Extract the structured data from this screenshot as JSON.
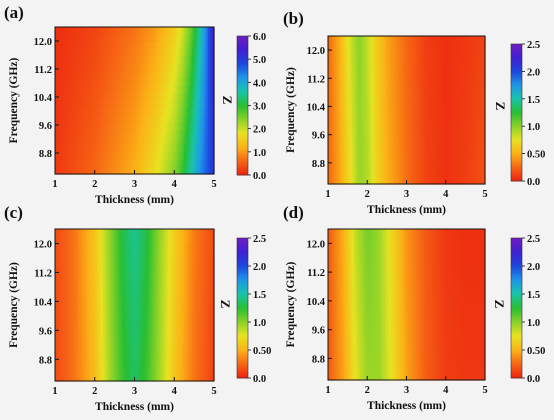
{
  "chart_data": [
    {
      "type": "heatmap",
      "panel_label": "(a)",
      "xlabel": "Thickness (mm)",
      "ylabel": "Frequency (GHz)",
      "colorbar_label": "Z",
      "xlim": [
        1,
        5
      ],
      "ylim": [
        8.2,
        12.4
      ],
      "xticks": [
        "1",
        "2",
        "3",
        "4",
        "5"
      ],
      "yticks": [
        "8.8",
        "9.6",
        "10.4",
        "11.2",
        "12.0"
      ],
      "ytick_values": [
        8.8,
        9.6,
        10.4,
        11.2,
        12.0
      ],
      "colorbar_ticks": [
        "0.0",
        "1.0",
        "2.0",
        "3.0",
        "4.0",
        "5.0",
        "6.0"
      ],
      "colorbar_range": [
        0,
        6
      ],
      "z_thickness": [
        1.0,
        1.5,
        2.0,
        2.5,
        3.0,
        3.5,
        4.0,
        4.2,
        4.4,
        4.6,
        4.8,
        5.0
      ],
      "z_at_8.2GHz": [
        0.2,
        0.4,
        0.6,
        0.9,
        1.2,
        1.7,
        2.4,
        2.9,
        3.5,
        4.1,
        4.6,
        5.0
      ],
      "z_at_12.4GHz": [
        0.1,
        0.2,
        0.3,
        0.5,
        0.7,
        1.0,
        1.5,
        1.9,
        2.5,
        3.3,
        4.3,
        5.5
      ]
    },
    {
      "type": "heatmap",
      "panel_label": "(b)",
      "xlabel": "Thickness (mm)",
      "ylabel": "Frequency (GHz)",
      "colorbar_label": "Z",
      "xlim": [
        1,
        5
      ],
      "ylim": [
        8.2,
        12.4
      ],
      "xticks": [
        "1",
        "2",
        "3",
        "4",
        "5"
      ],
      "yticks": [
        "8.8",
        "9.6",
        "10.4",
        "11.2",
        "12.0"
      ],
      "ytick_values": [
        8.8,
        9.6,
        10.4,
        11.2,
        12.0
      ],
      "colorbar_ticks": [
        "0.0",
        "0.50",
        "1.0",
        "1.5",
        "2.0",
        "2.5"
      ],
      "colorbar_range": [
        0,
        2.5
      ],
      "z_thickness": [
        1.0,
        1.3,
        1.6,
        1.8,
        2.0,
        2.2,
        2.5,
        3.0,
        3.5,
        4.0,
        4.5,
        5.0
      ],
      "z_at_8.2GHz": [
        0.25,
        0.45,
        0.75,
        0.95,
        0.9,
        0.7,
        0.5,
        0.28,
        0.12,
        0.06,
        0.1,
        0.18
      ],
      "z_at_12.4GHz": [
        0.25,
        0.5,
        0.85,
        1.0,
        0.85,
        0.65,
        0.45,
        0.25,
        0.1,
        0.05,
        0.08,
        0.12
      ]
    },
    {
      "type": "heatmap",
      "panel_label": "(c)",
      "xlabel": "Thickness (mm)",
      "ylabel": "Frequency (GHz)",
      "colorbar_label": "Z",
      "xlim": [
        1,
        5
      ],
      "ylim": [
        8.2,
        12.4
      ],
      "xticks": [
        "1",
        "2",
        "3",
        "4",
        "5"
      ],
      "yticks": [
        "8.8",
        "9.6",
        "10.4",
        "11.2",
        "12.0"
      ],
      "ytick_values": [
        8.8,
        9.6,
        10.4,
        11.2,
        12.0
      ],
      "colorbar_ticks": [
        "0.0",
        "0.50",
        "1.0",
        "1.5",
        "2.0",
        "2.5"
      ],
      "colorbar_range": [
        0,
        2.5
      ],
      "z_thickness": [
        1.0,
        1.5,
        2.0,
        2.4,
        2.7,
        3.0,
        3.3,
        3.6,
        4.0,
        4.5,
        5.0
      ],
      "z_at_8.2GHz": [
        0.15,
        0.3,
        0.55,
        0.95,
        1.2,
        1.35,
        1.2,
        0.95,
        0.6,
        0.3,
        0.12
      ],
      "z_at_12.4GHz": [
        0.15,
        0.3,
        0.6,
        1.0,
        1.3,
        1.45,
        1.3,
        1.0,
        0.65,
        0.32,
        0.15
      ]
    },
    {
      "type": "heatmap",
      "panel_label": "(d)",
      "xlabel": "Thickness (mm)",
      "ylabel": "Frequency (GHz)",
      "colorbar_label": "Z",
      "xlim": [
        1,
        5
      ],
      "ylim": [
        8.2,
        12.4
      ],
      "xticks": [
        "1",
        "2",
        "3",
        "4",
        "5"
      ],
      "yticks": [
        "8.8",
        "9.6",
        "10.4",
        "11.2",
        "12.0"
      ],
      "ytick_values": [
        8.8,
        9.6,
        10.4,
        11.2,
        12.0
      ],
      "colorbar_ticks": [
        "0.0",
        "0.50",
        "1.0",
        "1.5",
        "2.0",
        "2.5"
      ],
      "colorbar_range": [
        0,
        2.5
      ],
      "z_thickness": [
        1.0,
        1.4,
        1.7,
        2.0,
        2.3,
        2.6,
        3.0,
        3.5,
        4.0,
        4.5,
        5.0
      ],
      "z_at_8.2GHz": [
        0.2,
        0.45,
        0.75,
        0.95,
        0.95,
        0.75,
        0.45,
        0.22,
        0.1,
        0.08,
        0.08
      ],
      "z_at_12.4GHz": [
        0.2,
        0.5,
        0.85,
        1.05,
        0.95,
        0.7,
        0.4,
        0.2,
        0.08,
        0.05,
        0.05
      ]
    }
  ]
}
